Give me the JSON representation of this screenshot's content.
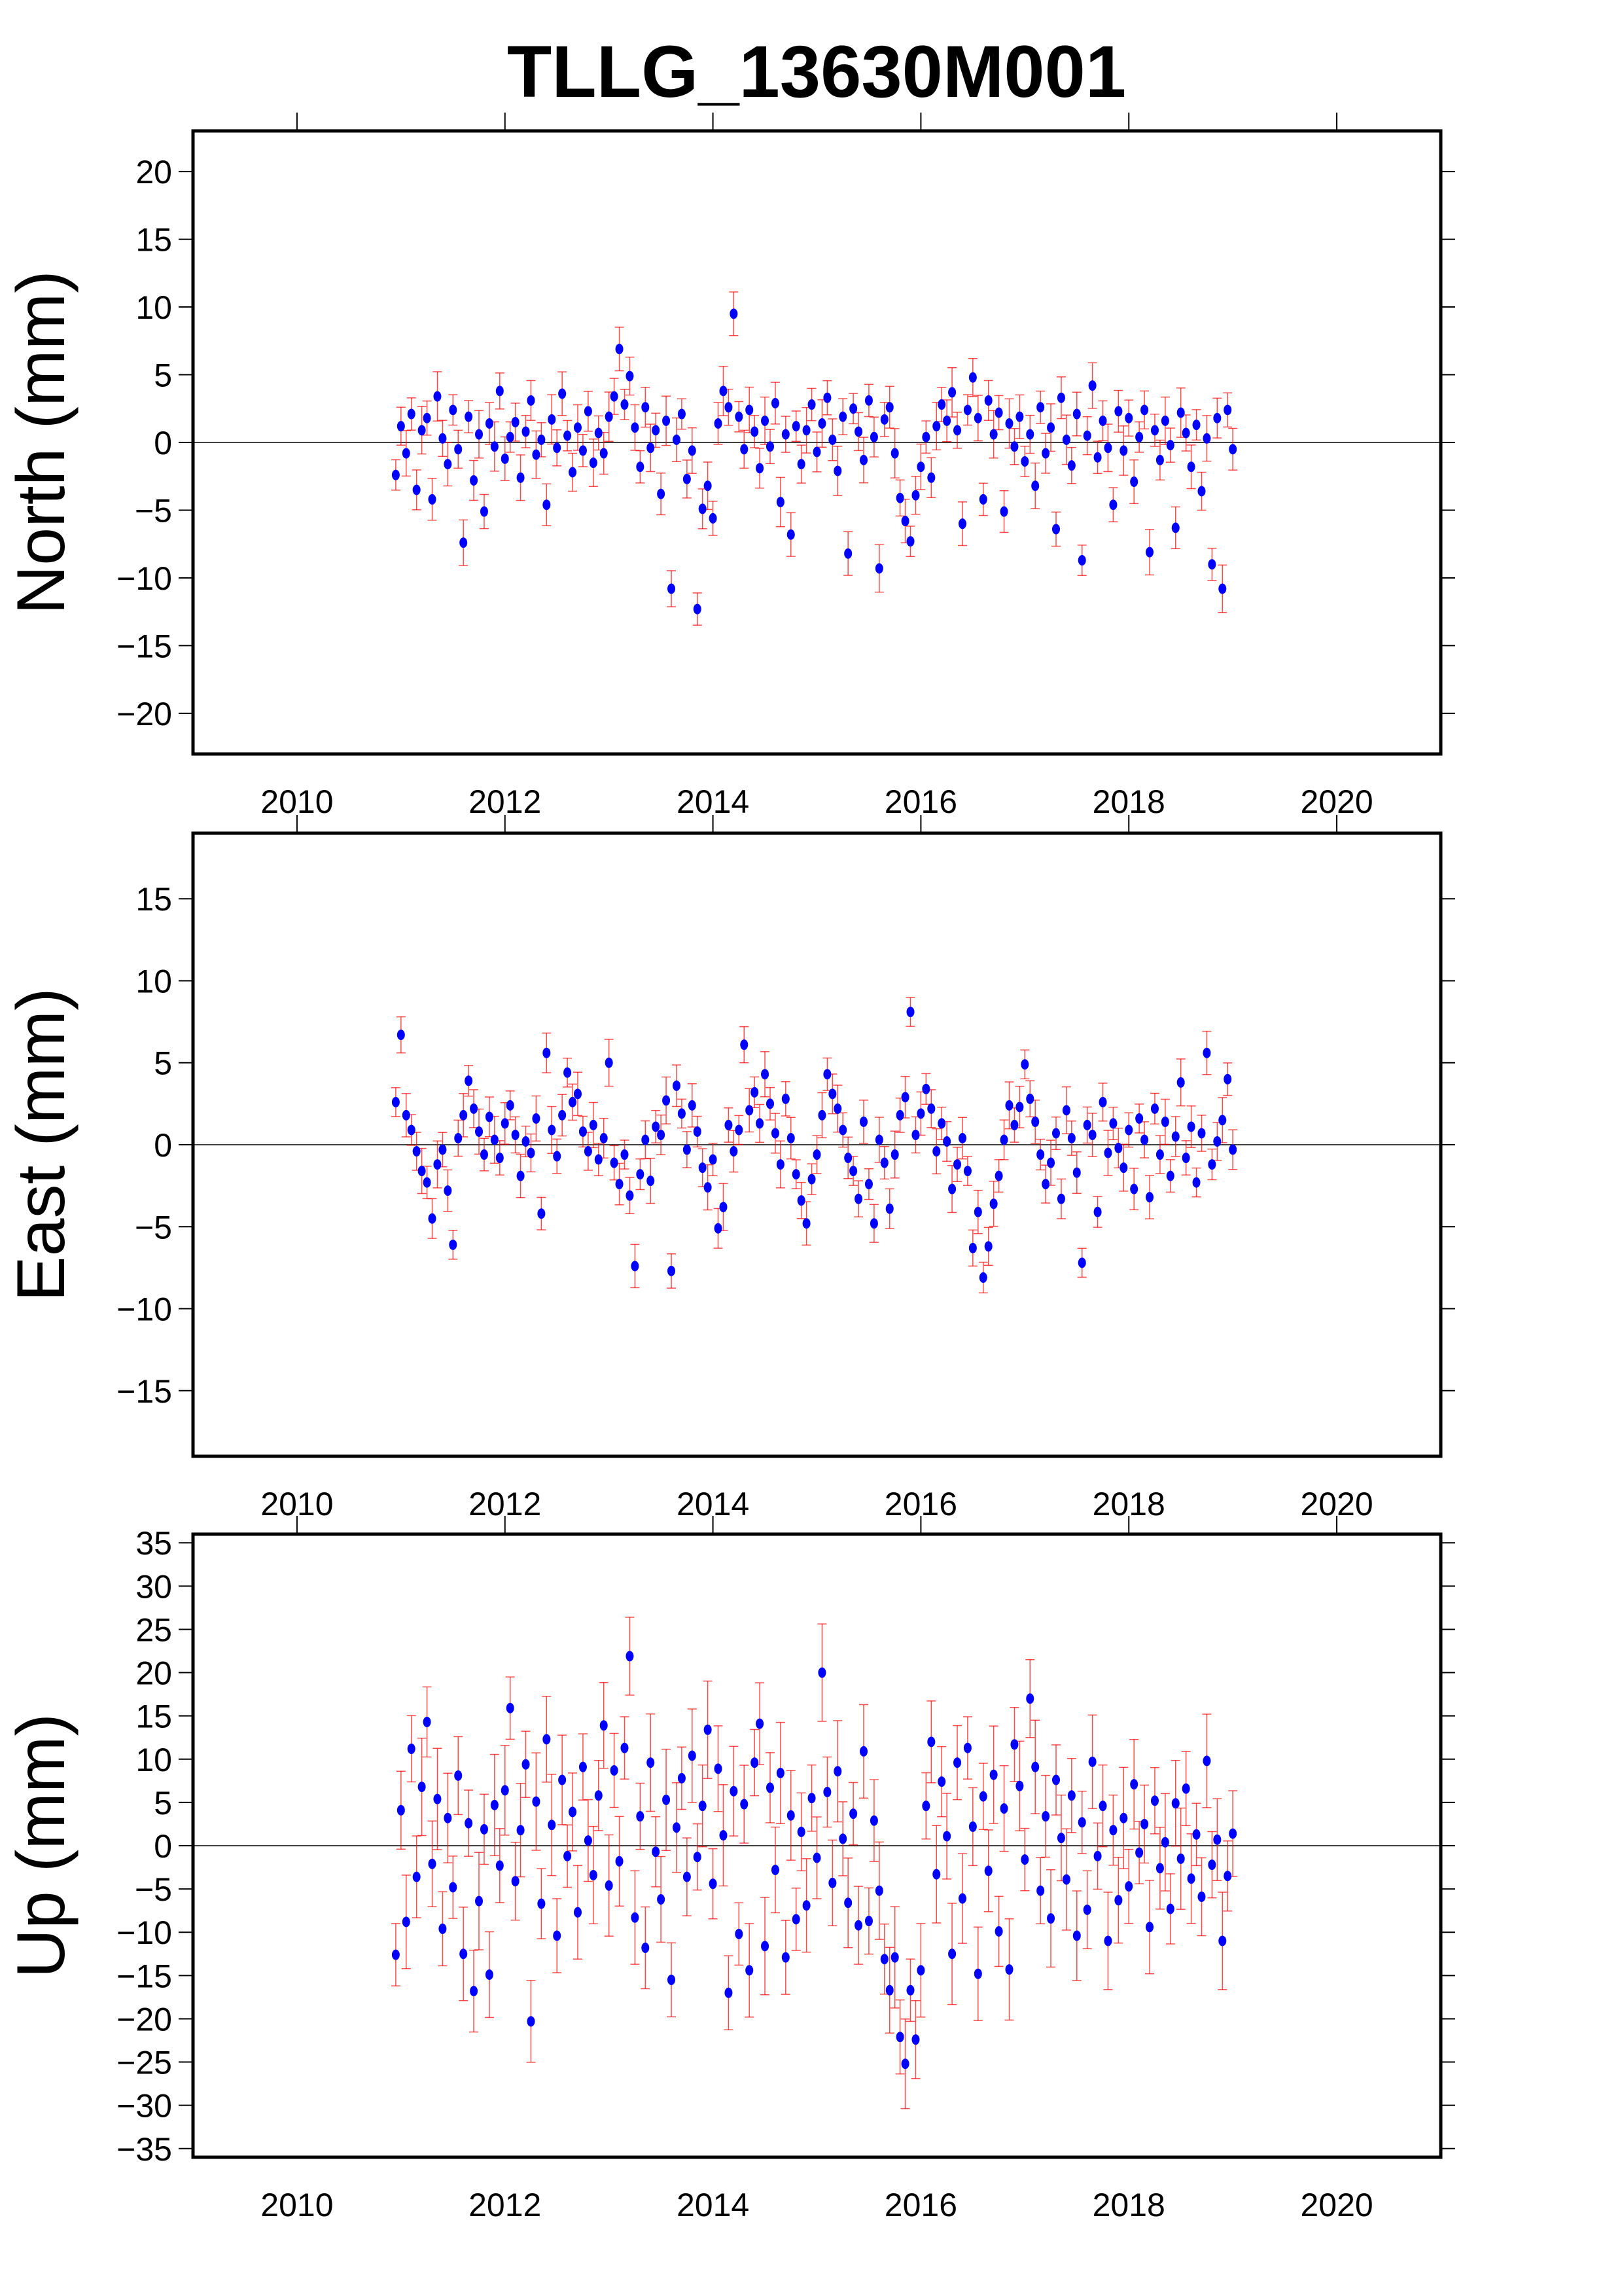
{
  "chart_data": {
    "type": "scatter",
    "title": "TLLG_13630M001",
    "x_start": 2010.95,
    "x_step": 0.05,
    "xlim": [
      2009,
      2021
    ],
    "x_ticks": [
      2010,
      2012,
      2014,
      2016,
      2018,
      2020
    ],
    "marker_color": "#0000ff",
    "error_color": "#ff0000",
    "panels": [
      {
        "name": "north",
        "ylabel": "North (mm)",
        "ylim": [
          -23,
          23
        ],
        "y_ticks": [
          -20,
          -15,
          -10,
          -5,
          0,
          5,
          10,
          15,
          20
        ],
        "error_sigma": 1.4,
        "values": [
          -2.4,
          1.2,
          -0.8,
          2.1,
          -3.5,
          0.9,
          1.8,
          -4.2,
          3.4,
          0.3,
          -1.6,
          2.4,
          -0.5,
          -7.4,
          1.9,
          -2.8,
          0.6,
          -5.1,
          1.4,
          -0.3,
          3.8,
          -1.2,
          0.4,
          1.5,
          -2.6,
          0.8,
          3.1,
          -0.9,
          0.2,
          -4.6,
          1.7,
          -0.4,
          3.6,
          0.5,
          -2.2,
          1.1,
          -0.6,
          2.3,
          -1.5,
          0.7,
          -0.8,
          1.9,
          3.4,
          6.9,
          2.8,
          4.9,
          1.1,
          -1.8,
          2.6,
          -0.4,
          0.9,
          -3.8,
          1.6,
          -10.8,
          0.2,
          2.1,
          -2.7,
          -0.6,
          -12.3,
          -4.9,
          -3.2,
          -5.6,
          1.4,
          3.8,
          2.6,
          9.5,
          1.9,
          -0.5,
          2.4,
          0.8,
          -1.9,
          1.6,
          -0.3,
          2.9,
          -4.4,
          0.6,
          -6.8,
          1.2,
          -1.6,
          0.9,
          2.8,
          -0.7,
          1.4,
          3.3,
          0.2,
          -2.1,
          1.9,
          -8.2,
          2.5,
          0.8,
          -1.3,
          3.1,
          0.4,
          -9.3,
          1.7,
          2.6,
          -0.8,
          -4.1,
          -5.8,
          -7.3,
          -3.9,
          -1.8,
          0.4,
          -2.6,
          1.2,
          2.8,
          1.6,
          3.7,
          0.9,
          -6.0,
          2.4,
          4.8,
          1.8,
          -4.2,
          3.1,
          0.6,
          2.2,
          -5.1,
          1.4,
          -0.3,
          1.9,
          -1.4,
          0.6,
          -3.2,
          2.6,
          -0.8,
          1.1,
          -6.4,
          3.3,
          0.2,
          -1.7,
          2.1,
          -8.7,
          0.5,
          4.2,
          -1.1,
          1.6,
          -0.4,
          -4.6,
          2.3,
          -0.6,
          1.8,
          -2.9,
          0.4,
          2.4,
          -8.1,
          0.9,
          -1.3,
          1.6,
          -0.2,
          -6.3,
          2.2,
          0.7,
          -1.8,
          1.3,
          -3.6,
          0.3,
          -9.0,
          1.8,
          -10.8,
          2.4,
          -0.5
        ]
      },
      {
        "name": "east",
        "ylabel": "East (mm)",
        "ylim": [
          -19,
          19
        ],
        "y_ticks": [
          -15,
          -10,
          -5,
          0,
          5,
          10,
          15
        ],
        "error_sigma": 1.1,
        "values": [
          2.6,
          6.7,
          1.8,
          0.9,
          -0.4,
          -1.6,
          -2.3,
          -4.5,
          -1.2,
          -0.3,
          -2.8,
          -6.1,
          0.4,
          1.8,
          3.9,
          2.2,
          0.8,
          -0.6,
          1.7,
          0.3,
          -0.8,
          1.3,
          2.4,
          0.6,
          -1.9,
          0.2,
          -0.5,
          1.6,
          -4.2,
          5.6,
          0.9,
          -0.7,
          1.8,
          4.4,
          2.6,
          3.1,
          0.8,
          -0.4,
          1.2,
          -0.9,
          0.4,
          5.0,
          -1.1,
          -2.4,
          -0.6,
          -3.1,
          -7.4,
          -1.8,
          0.3,
          -2.2,
          1.1,
          0.6,
          2.7,
          -7.7,
          3.6,
          1.9,
          -0.3,
          2.4,
          0.8,
          -1.4,
          -2.6,
          -0.9,
          -5.1,
          -3.8,
          1.2,
          -0.4,
          0.9,
          6.1,
          2.1,
          3.2,
          1.3,
          4.3,
          2.5,
          0.7,
          -1.2,
          2.8,
          0.4,
          -1.8,
          -3.4,
          -4.8,
          -2.1,
          -0.6,
          1.8,
          4.3,
          3.1,
          2.2,
          0.9,
          -0.8,
          -1.6,
          -3.3,
          1.4,
          -2.4,
          -4.8,
          0.3,
          -1.1,
          -3.9,
          -0.6,
          1.8,
          2.9,
          8.1,
          0.6,
          1.9,
          3.4,
          2.2,
          -0.4,
          1.3,
          0.2,
          -2.7,
          -1.2,
          0.4,
          -1.6,
          -6.3,
          -4.1,
          -8.1,
          -6.2,
          -3.6,
          -1.9,
          0.3,
          2.4,
          1.2,
          2.3,
          4.9,
          2.8,
          1.4,
          -0.6,
          -2.4,
          -1.1,
          0.7,
          -3.3,
          2.1,
          0.4,
          -1.7,
          -7.2,
          1.2,
          0.6,
          -4.1,
          2.6,
          -0.5,
          1.3,
          -0.2,
          -1.4,
          0.9,
          -2.7,
          1.6,
          0.3,
          -3.2,
          2.2,
          -0.6,
          1.4,
          -1.9,
          0.5,
          3.8,
          -0.8,
          1.1,
          -2.3,
          0.7,
          5.6,
          -1.2,
          0.2,
          1.5,
          4.0,
          -0.3
        ]
      },
      {
        "name": "up",
        "ylabel": "Up (mm)",
        "ylim": [
          -36,
          36
        ],
        "y_ticks": [
          -35,
          -30,
          -25,
          -20,
          -15,
          -10,
          -5,
          0,
          5,
          10,
          15,
          20,
          25,
          30,
          35
        ],
        "error_sigma": 4.5,
        "values": [
          -12.6,
          4.1,
          -8.8,
          11.2,
          -3.6,
          6.8,
          14.3,
          -2.1,
          5.4,
          -9.6,
          3.2,
          -4.8,
          8.1,
          -12.5,
          2.6,
          -16.8,
          -6.4,
          1.9,
          -14.9,
          4.7,
          -2.3,
          6.4,
          15.9,
          -4.1,
          1.8,
          9.4,
          -20.3,
          5.1,
          -6.7,
          12.3,
          2.4,
          -10.4,
          7.6,
          -1.2,
          3.9,
          -7.7,
          9.1,
          0.6,
          -3.4,
          5.8,
          13.9,
          -4.6,
          8.7,
          -1.8,
          11.3,
          21.9,
          -8.3,
          3.4,
          -11.8,
          9.6,
          -0.7,
          -6.2,
          5.3,
          -15.5,
          2.1,
          7.8,
          -3.6,
          10.4,
          -1.3,
          4.6,
          13.4,
          -4.4,
          8.9,
          1.2,
          -17.0,
          6.3,
          -10.2,
          4.8,
          -14.4,
          9.6,
          14.1,
          -11.6,
          6.7,
          -2.8,
          8.4,
          -12.9,
          3.5,
          -8.5,
          1.6,
          -6.9,
          5.5,
          -1.4,
          20.0,
          6.2,
          -4.3,
          8.6,
          0.8,
          -6.6,
          3.7,
          -9.2,
          10.9,
          -8.7,
          2.9,
          -5.2,
          -13.1,
          -16.7,
          -12.9,
          -22.1,
          -25.2,
          -16.7,
          -22.4,
          -14.4,
          4.6,
          12.0,
          -3.3,
          7.4,
          1.1,
          -12.5,
          9.6,
          -6.1,
          11.3,
          2.2,
          -14.8,
          5.7,
          -2.9,
          8.2,
          -9.9,
          4.3,
          -14.3,
          11.7,
          6.9,
          -1.6,
          17.0,
          9.1,
          -5.2,
          3.4,
          -8.4,
          7.6,
          0.9,
          -3.9,
          5.8,
          -10.4,
          2.7,
          -7.4,
          9.7,
          -1.2,
          4.6,
          -11.0,
          1.8,
          -6.3,
          3.2,
          -4.7,
          7.1,
          -0.8,
          2.5,
          -9.4,
          5.2,
          -2.6,
          0.4,
          -7.3,
          4.9,
          -1.5,
          6.6,
          -3.8,
          1.3,
          -5.9,
          9.8,
          -2.2,
          0.7,
          -11.0,
          -3.5,
          1.4
        ]
      }
    ]
  }
}
